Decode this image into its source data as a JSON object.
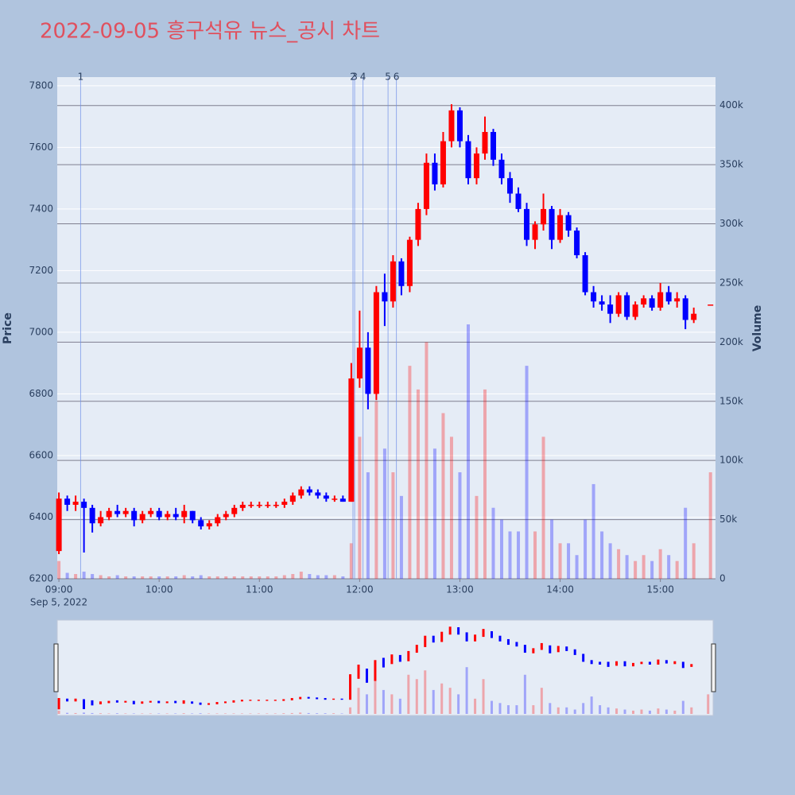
{
  "chart_data": {
    "type": "candlestick",
    "title": "2022-09-05 흥구석유 뉴스_공시 차트",
    "y_label": "Price",
    "y2_label": "Volume",
    "increasing_color": "#ff0000",
    "decreasing_color": "#0000ff",
    "xlim": [
      "2022-09-05 08:59",
      "2022-09-05 15:33"
    ],
    "xticks": [
      {
        "value": "2022-09-05 09:00",
        "label": "09:00"
      },
      {
        "value": "2022-09-05 10:00",
        "label": "10:00"
      },
      {
        "value": "2022-09-05 11:00",
        "label": "11:00"
      },
      {
        "value": "2022-09-05 12:00",
        "label": "12:00"
      },
      {
        "value": "2022-09-05 13:00",
        "label": "13:00"
      },
      {
        "value": "2022-09-05 14:00",
        "label": "14:00"
      },
      {
        "value": "2022-09-05 15:00",
        "label": "15:00"
      }
    ],
    "x_date_label": "Sep 5, 2022",
    "ylim": [
      6200,
      7828
    ],
    "yticks": [
      6200,
      6400,
      6600,
      6800,
      7000,
      7200,
      7400,
      7600,
      7800
    ],
    "y2lim": [
      0,
      424000
    ],
    "y2ticks": [
      0,
      {
        "value": 50000,
        "label": "50k"
      },
      {
        "value": 100000,
        "label": "100k"
      },
      {
        "value": 150000,
        "label": "150k"
      },
      {
        "value": 200000,
        "label": "200k"
      },
      {
        "value": 250000,
        "label": "250k"
      },
      {
        "value": 300000,
        "label": "300k"
      },
      {
        "value": 350000,
        "label": "350k"
      },
      {
        "value": 400000,
        "label": "400k"
      }
    ],
    "annotations": [
      {
        "x": "2022-09-05 09:13",
        "label": "1"
      },
      {
        "x": "2022-09-05 11:56",
        "label": "2"
      },
      {
        "x": "2022-09-05 11:57",
        "label": "3"
      },
      {
        "x": "2022-09-05 12:02",
        "label": "4"
      },
      {
        "x": "2022-09-05 12:17",
        "label": "5"
      },
      {
        "x": "2022-09-05 12:22",
        "label": "6"
      }
    ],
    "x": [
      "2022-09-05 09:00",
      "2022-09-05 09:05",
      "2022-09-05 09:10",
      "2022-09-05 09:15",
      "2022-09-05 09:20",
      "2022-09-05 09:25",
      "2022-09-05 09:30",
      "2022-09-05 09:35",
      "2022-09-05 09:40",
      "2022-09-05 09:45",
      "2022-09-05 09:50",
      "2022-09-05 09:55",
      "2022-09-05 10:00",
      "2022-09-05 10:05",
      "2022-09-05 10:10",
      "2022-09-05 10:15",
      "2022-09-05 10:20",
      "2022-09-05 10:25",
      "2022-09-05 10:30",
      "2022-09-05 10:35",
      "2022-09-05 10:40",
      "2022-09-05 10:45",
      "2022-09-05 10:50",
      "2022-09-05 10:55",
      "2022-09-05 11:00",
      "2022-09-05 11:05",
      "2022-09-05 11:10",
      "2022-09-05 11:15",
      "2022-09-05 11:20",
      "2022-09-05 11:25",
      "2022-09-05 11:30",
      "2022-09-05 11:35",
      "2022-09-05 11:40",
      "2022-09-05 11:45",
      "2022-09-05 11:50",
      "2022-09-05 11:55",
      "2022-09-05 12:00",
      "2022-09-05 12:05",
      "2022-09-05 12:10",
      "2022-09-05 12:15",
      "2022-09-05 12:20",
      "2022-09-05 12:25",
      "2022-09-05 12:30",
      "2022-09-05 12:35",
      "2022-09-05 12:40",
      "2022-09-05 12:45",
      "2022-09-05 12:50",
      "2022-09-05 12:55",
      "2022-09-05 13:00",
      "2022-09-05 13:05",
      "2022-09-05 13:10",
      "2022-09-05 13:15",
      "2022-09-05 13:20",
      "2022-09-05 13:25",
      "2022-09-05 13:30",
      "2022-09-05 13:35",
      "2022-09-05 13:40",
      "2022-09-05 13:45",
      "2022-09-05 13:50",
      "2022-09-05 13:55",
      "2022-09-05 14:00",
      "2022-09-05 14:05",
      "2022-09-05 14:10",
      "2022-09-05 14:15",
      "2022-09-05 14:20",
      "2022-09-05 14:25",
      "2022-09-05 14:30",
      "2022-09-05 14:35",
      "2022-09-05 14:40",
      "2022-09-05 14:45",
      "2022-09-05 14:50",
      "2022-09-05 14:55",
      "2022-09-05 15:00",
      "2022-09-05 15:05",
      "2022-09-05 15:10",
      "2022-09-05 15:15",
      "2022-09-05 15:20",
      "2022-09-05 15:30"
    ],
    "open": [
      6290,
      6460,
      6440,
      6450,
      6430,
      6380,
      6400,
      6420,
      6410,
      6420,
      6390,
      6410,
      6420,
      6400,
      6410,
      6400,
      6420,
      6390,
      6370,
      6380,
      6400,
      6410,
      6430,
      6440,
      6440,
      6440,
      6440,
      6440,
      6450,
      6470,
      6490,
      6480,
      6470,
      6460,
      6460,
      6450,
      6850,
      6950,
      6800,
      7130,
      7100,
      7230,
      7150,
      7300,
      7400,
      7550,
      7480,
      7620,
      7720,
      7620,
      7500,
      7580,
      7650,
      7560,
      7500,
      7450,
      7400,
      7300,
      7350,
      7400,
      7300,
      7380,
      7330,
      7250,
      7130,
      7100,
      7090,
      7060,
      7120,
      7050,
      7090,
      7110,
      7080,
      7130,
      7100,
      7110,
      7040,
      7090
    ],
    "high": [
      6480,
      6470,
      6470,
      6460,
      6440,
      6420,
      6430,
      6440,
      6430,
      6430,
      6420,
      6430,
      6430,
      6420,
      6430,
      6440,
      6420,
      6400,
      6390,
      6410,
      6420,
      6440,
      6450,
      6450,
      6450,
      6450,
      6450,
      6460,
      6480,
      6500,
      6500,
      6490,
      6480,
      6470,
      6470,
      6900,
      7070,
      7000,
      7150,
      7190,
      7250,
      7240,
      7310,
      7420,
      7580,
      7580,
      7650,
      7740,
      7730,
      7640,
      7600,
      7700,
      7660,
      7580,
      7520,
      7470,
      7420,
      7360,
      7450,
      7410,
      7400,
      7390,
      7340,
      7260,
      7150,
      7120,
      7120,
      7130,
      7130,
      7100,
      7120,
      7120,
      7160,
      7150,
      7130,
      7120,
      7080,
      7090
    ],
    "low": [
      6280,
      6420,
      6420,
      6285,
      6350,
      6370,
      6390,
      6400,
      6400,
      6370,
      6380,
      6400,
      6390,
      6390,
      6390,
      6380,
      6380,
      6360,
      6360,
      6370,
      6390,
      6400,
      6420,
      6430,
      6430,
      6430,
      6430,
      6430,
      6440,
      6460,
      6470,
      6460,
      6450,
      6450,
      6450,
      6450,
      6820,
      6750,
      6780,
      7020,
      7080,
      7120,
      7130,
      7280,
      7380,
      7460,
      7470,
      7600,
      7600,
      7480,
      7480,
      7560,
      7540,
      7480,
      7420,
      7390,
      7280,
      7270,
      7330,
      7270,
      7290,
      7310,
      7240,
      7120,
      7080,
      7070,
      7030,
      7050,
      7040,
      7040,
      7080,
      7070,
      7070,
      7090,
      7080,
      7010,
      7030,
      7090
    ],
    "close": [
      6460,
      6440,
      6450,
      6430,
      6380,
      6400,
      6420,
      6410,
      6420,
      6390,
      6410,
      6420,
      6400,
      6410,
      6400,
      6420,
      6390,
      6370,
      6380,
      6400,
      6410,
      6430,
      6440,
      6440,
      6440,
      6440,
      6440,
      6450,
      6470,
      6490,
      6480,
      6470,
      6460,
      6460,
      6450,
      6850,
      6950,
      6800,
      7130,
      7100,
      7230,
      7150,
      7300,
      7400,
      7550,
      7480,
      7620,
      7720,
      7620,
      7500,
      7580,
      7650,
      7560,
      7500,
      7450,
      7400,
      7300,
      7350,
      7400,
      7300,
      7380,
      7330,
      7250,
      7130,
      7100,
      7090,
      7060,
      7120,
      7050,
      7090,
      7110,
      7080,
      7130,
      7100,
      7110,
      7040,
      7060,
      7090
    ],
    "volume": [
      15000,
      5000,
      4000,
      6000,
      4000,
      3000,
      2000,
      3000,
      2000,
      2000,
      2000,
      2000,
      2000,
      2000,
      2000,
      3000,
      2000,
      3000,
      2000,
      2000,
      2000,
      2000,
      2000,
      2000,
      2000,
      2000,
      2000,
      3000,
      4000,
      6000,
      4000,
      3000,
      3000,
      3000,
      2000,
      30000,
      120000,
      90000,
      150000,
      110000,
      90000,
      70000,
      180000,
      160000,
      200000,
      110000,
      140000,
      120000,
      90000,
      215000,
      70000,
      160000,
      60000,
      50000,
      40000,
      40000,
      180000,
      40000,
      120000,
      50000,
      30000,
      30000,
      20000,
      50000,
      80000,
      40000,
      30000,
      25000,
      20000,
      15000,
      20000,
      15000,
      25000,
      20000,
      15000,
      60000,
      30000,
      90000
    ]
  }
}
